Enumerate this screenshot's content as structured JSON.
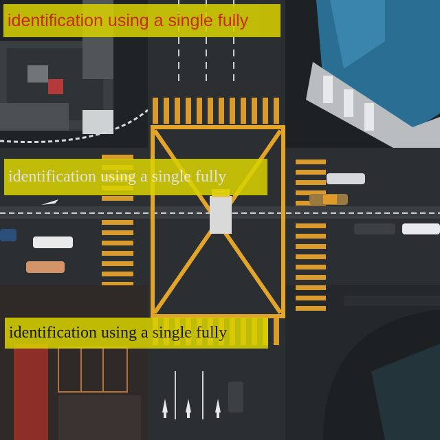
{
  "captions": [
    {
      "text": "identification using a single fully"
    },
    {
      "text": "identification using a single fully"
    },
    {
      "text": "identification using a single fully"
    }
  ],
  "colors": {
    "road": "#2b2f32",
    "marking_yellow": "#e3a42a",
    "zebra": "#d99a2e",
    "roof_blue": "#2a6f93",
    "caption_bg": "#d8d200",
    "caption_red": "#e42a10"
  }
}
